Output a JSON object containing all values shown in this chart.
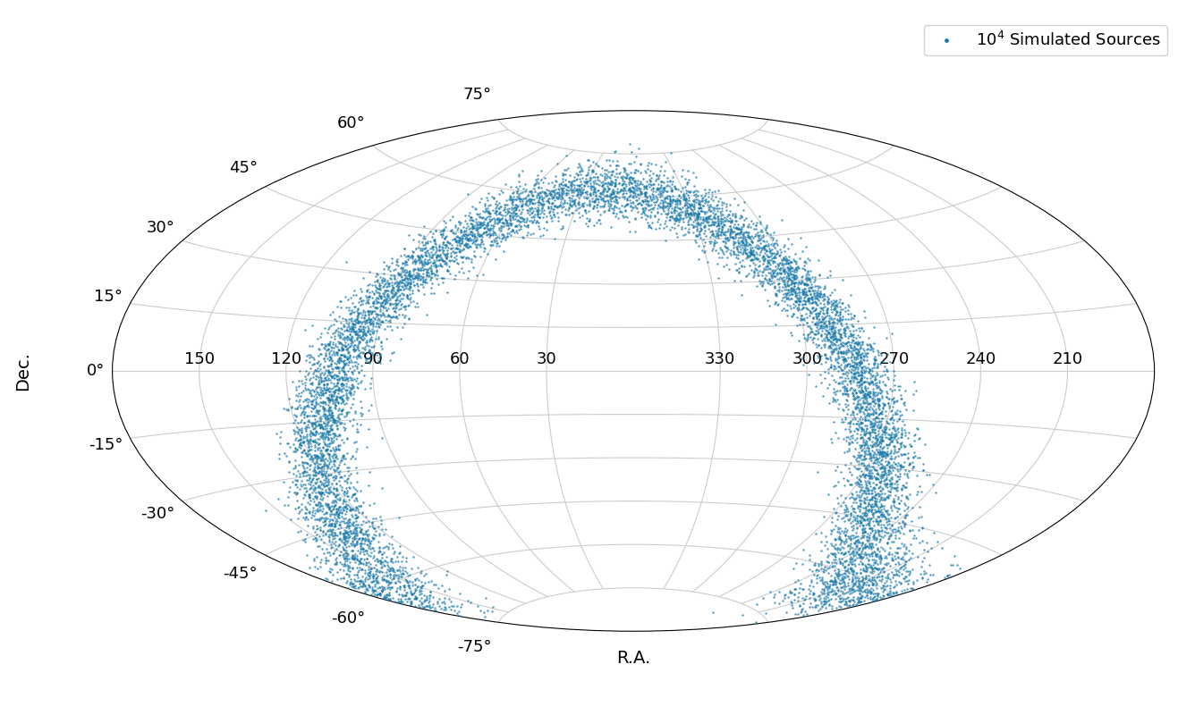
{
  "xlabel": "R.A.",
  "ylabel": "Dec.",
  "legend_label": "$10^4$ Simulated Sources",
  "point_color": "#1a7aaa",
  "point_alpha": 0.75,
  "point_size": 3,
  "n_sources": 10000,
  "seed": 42,
  "galactic_b_sigma_deg": 5.0,
  "background_color": "white",
  "grid_color": "#cccccc",
  "tick_labelsize": 13,
  "label_fontsize": 14,
  "legend_fontsize": 13,
  "ra_ticks_deg": [
    30,
    60,
    90,
    120,
    150,
    210,
    240,
    270,
    300,
    330
  ],
  "ra_tick_labels": [
    "30",
    "60",
    "90",
    "120",
    "150",
    "210",
    "240",
    "270",
    "300",
    "330"
  ],
  "dec_ticks_deg": [
    -75,
    -60,
    -45,
    -30,
    -15,
    0,
    15,
    30,
    45,
    60,
    75
  ],
  "dec_tick_labels": [
    "-75°",
    "-60°",
    "-45°",
    "-30°",
    "-15°",
    "0°",
    "15°",
    "30°",
    "45°",
    "60°",
    "75°"
  ]
}
